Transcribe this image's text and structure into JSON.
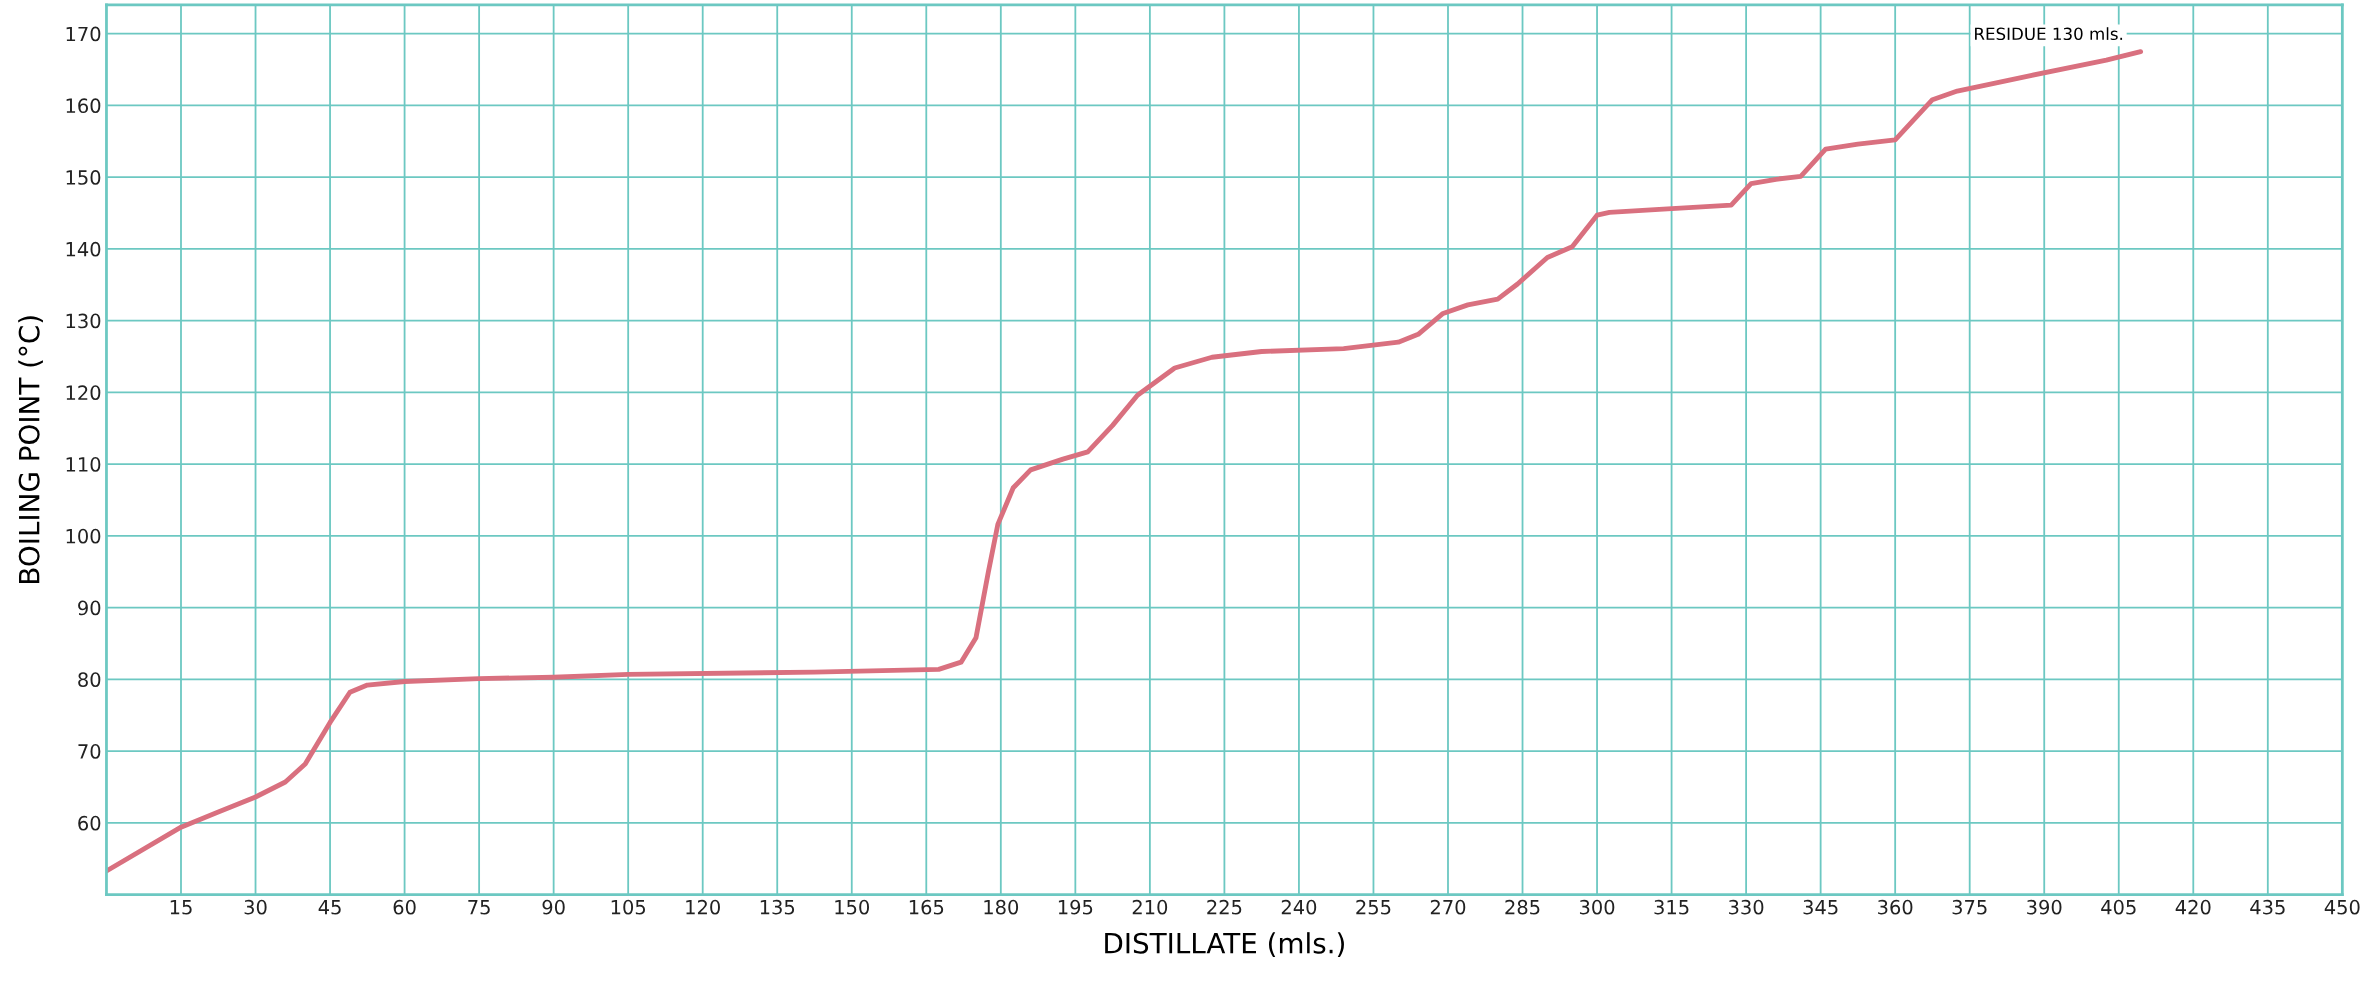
{
  "chart_data": {
    "type": "line",
    "xlabel": "DISTILLATE (mls.)",
    "ylabel": "BOILING POINT (°C)",
    "annotations": [
      "RESIDUE 130 mls."
    ],
    "xlim": [
      0,
      450
    ],
    "ylim": [
      50,
      174
    ],
    "xticks": [
      15,
      30,
      45,
      60,
      75,
      90,
      105,
      120,
      135,
      150,
      165,
      180,
      195,
      210,
      225,
      240,
      255,
      270,
      285,
      300,
      315,
      330,
      345,
      360,
      375,
      390,
      405,
      420,
      435,
      450
    ],
    "yticks": [
      60,
      70,
      80,
      90,
      100,
      110,
      120,
      130,
      140,
      150,
      160,
      170
    ],
    "grid": true,
    "marker": "none",
    "line_style": "solid",
    "series": [
      {
        "color": "#d9707f",
        "x": [
          0,
          15,
          22.5,
          30,
          36,
          40,
          45,
          49,
          52.5,
          60,
          75,
          90,
          105,
          142.5,
          167.5,
          172,
          175,
          177.5,
          179.4,
          182.5,
          186,
          192.5,
          197.5,
          202.5,
          207.5,
          215,
          222.5,
          232.5,
          249,
          260,
          264,
          269,
          274,
          280,
          284,
          290,
          295,
          300,
          302.5,
          312.5,
          327,
          331,
          336,
          341,
          346,
          352.5,
          360,
          367.5,
          372.5,
          387.5,
          402.5,
          409.4
        ],
        "values": [
          53.3,
          59.4,
          61.5,
          63.6,
          65.7,
          68.2,
          74,
          78.2,
          79.2,
          79.7,
          80.1,
          80.3,
          80.7,
          81,
          81.4,
          82.4,
          85.8,
          95,
          101.6,
          106.7,
          109.2,
          110.7,
          111.7,
          115.4,
          119.6,
          123.4,
          124.9,
          125.7,
          126.1,
          127,
          128.1,
          131,
          132.2,
          133,
          135.1,
          138.8,
          140.3,
          144.7,
          145.1,
          145.5,
          146.1,
          149.1,
          149.7,
          150.1,
          153.9,
          154.6,
          155.2,
          160.8,
          162,
          164.2,
          166.3,
          167.5
        ]
      }
    ]
  }
}
